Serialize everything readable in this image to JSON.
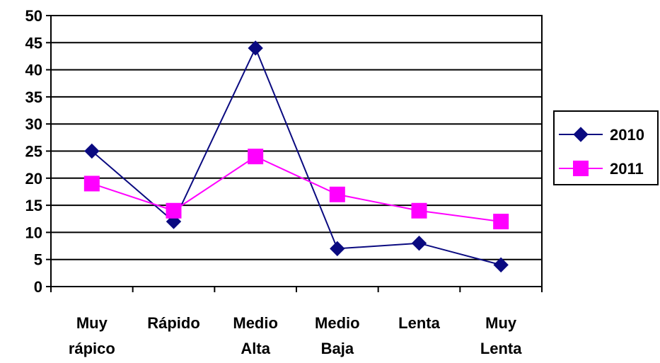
{
  "chart_data": {
    "type": "line",
    "categories": [
      [
        "Muy",
        "rápico"
      ],
      [
        "Rápido"
      ],
      [
        "Medio",
        "Alta"
      ],
      [
        "Medio",
        "Baja"
      ],
      [
        "Lenta"
      ],
      [
        "Muy",
        "Lenta"
      ]
    ],
    "series": [
      {
        "name": "2010",
        "values": [
          25,
          12,
          44,
          7,
          8,
          4
        ],
        "color": "#0a0a80",
        "marker": "diamond"
      },
      {
        "name": "2011",
        "values": [
          19,
          14,
          24,
          17,
          14,
          12
        ],
        "color": "#ff00ff",
        "marker": "square"
      }
    ],
    "ylim": [
      0,
      50
    ],
    "yticks": [
      0,
      5,
      10,
      15,
      20,
      25,
      30,
      35,
      40,
      45,
      50
    ],
    "grid": true,
    "legend": "right"
  }
}
